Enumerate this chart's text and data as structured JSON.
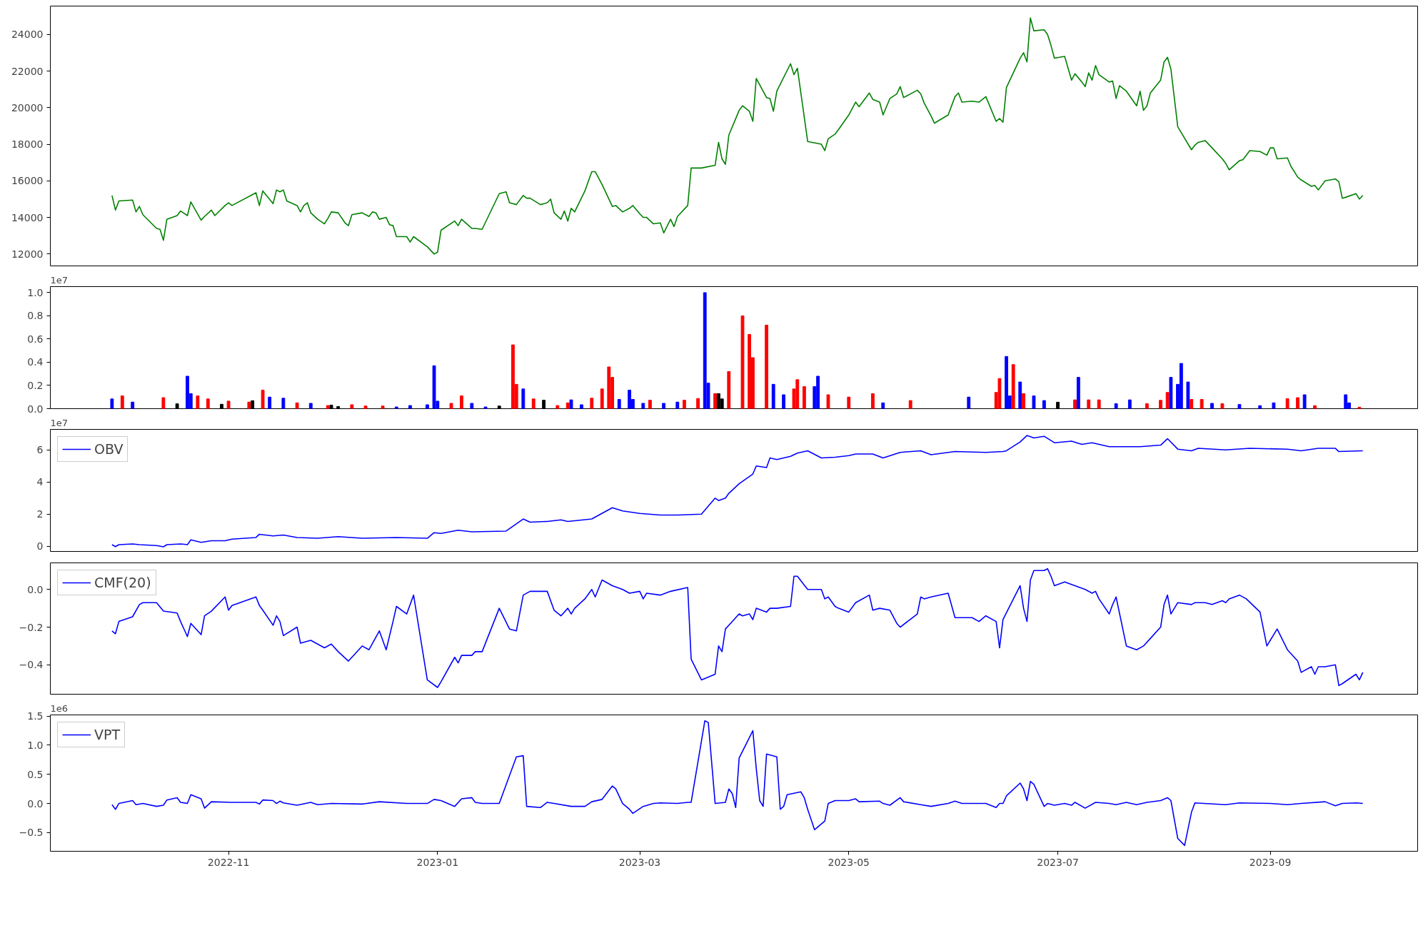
{
  "chart_data": [
    {
      "type": "line",
      "xlim": [
        "2022-09-10",
        "2023-10-14"
      ],
      "tick_labels": "y",
      "ylim": [
        11350,
        25550
      ],
      "yticks": [
        12000,
        14000,
        16000,
        18000,
        20000,
        22000,
        24000
      ],
      "series": [
        {
          "color": "#008000",
          "x": [
            "2022-09-28",
            "2022-09-29",
            "2022-09-30",
            "2022-10-04",
            "2022-10-05",
            "2022-10-06",
            "2022-10-07",
            "2022-10-11",
            "2022-10-12",
            "2022-10-13",
            "2022-10-14",
            "2022-10-17",
            "2022-10-18",
            "2022-10-20",
            "2022-10-21",
            "2022-10-24",
            "2022-10-25",
            "2022-10-27",
            "2022-10-28",
            "2022-10-31",
            "2022-11-01",
            "2022-11-02",
            "2022-11-09",
            "2022-11-10",
            "2022-11-11",
            "2022-11-14",
            "2022-11-15",
            "2022-11-16",
            "2022-11-17",
            "2022-11-18",
            "2022-11-21",
            "2022-11-22",
            "2022-11-23",
            "2022-11-24",
            "2022-11-25",
            "2022-11-27",
            "2022-11-29",
            "2022-11-30",
            "2022-12-01",
            "2022-12-03",
            "2022-12-05",
            "2022-12-06",
            "2022-12-07",
            "2022-12-10",
            "2022-12-12",
            "2022-12-13",
            "2022-12-14",
            "2022-12-15",
            "2022-12-17",
            "2022-12-18",
            "2022-12-19",
            "2022-12-20",
            "2022-12-23",
            "2022-12-24",
            "2022-12-25",
            "2022-12-29",
            "2022-12-31",
            "2023-01-01",
            "2023-01-02",
            "2023-01-06",
            "2023-01-07",
            "2023-01-08",
            "2023-01-11",
            "2023-01-12",
            "2023-01-14",
            "2023-01-19",
            "2023-01-21",
            "2023-01-22",
            "2023-01-24",
            "2023-01-26",
            "2023-01-27",
            "2023-01-28",
            "2023-01-31",
            "2023-02-02",
            "2023-02-03",
            "2023-02-04",
            "2023-02-06",
            "2023-02-07",
            "2023-02-08",
            "2023-02-09",
            "2023-02-10",
            "2023-02-13",
            "2023-02-15",
            "2023-02-16",
            "2023-02-18",
            "2023-02-21",
            "2023-02-22",
            "2023-02-24",
            "2023-02-26",
            "2023-02-27",
            "2023-03-01",
            "2023-03-02",
            "2023-03-03",
            "2023-03-05",
            "2023-03-07",
            "2023-03-08",
            "2023-03-10",
            "2023-03-11",
            "2023-03-12",
            "2023-03-15",
            "2023-03-16",
            "2023-03-19",
            "2023-03-23",
            "2023-03-24",
            "2023-03-25",
            "2023-03-26",
            "2023-03-27",
            "2023-03-30",
            "2023-03-31",
            "2023-04-02",
            "2023-04-03",
            "2023-04-04",
            "2023-04-07",
            "2023-04-08",
            "2023-04-09",
            "2023-04-10",
            "2023-04-14",
            "2023-04-15",
            "2023-04-16",
            "2023-04-19",
            "2023-04-23",
            "2023-04-24",
            "2023-04-25",
            "2023-04-27",
            "2023-04-28",
            "2023-05-01",
            "2023-05-03",
            "2023-05-04",
            "2023-05-07",
            "2023-05-08",
            "2023-05-10",
            "2023-05-11",
            "2023-05-13",
            "2023-05-15",
            "2023-05-16",
            "2023-05-17",
            "2023-05-21",
            "2023-05-22",
            "2023-05-23",
            "2023-05-25",
            "2023-05-26",
            "2023-05-30",
            "2023-06-01",
            "2023-06-02",
            "2023-06-03",
            "2023-06-06",
            "2023-06-08",
            "2023-06-10",
            "2023-06-13",
            "2023-06-14",
            "2023-06-15",
            "2023-06-16",
            "2023-06-20",
            "2023-06-21",
            "2023-06-22",
            "2023-06-23",
            "2023-06-24",
            "2023-06-27",
            "2023-06-28",
            "2023-06-29",
            "2023-06-30",
            "2023-07-03",
            "2023-07-05",
            "2023-07-06",
            "2023-07-08",
            "2023-07-09",
            "2023-07-10",
            "2023-07-11",
            "2023-07-12",
            "2023-07-13",
            "2023-07-16",
            "2023-07-17",
            "2023-07-18",
            "2023-07-19",
            "2023-07-21",
            "2023-07-24",
            "2023-07-25",
            "2023-07-26",
            "2023-07-27",
            "2023-07-28",
            "2023-07-31",
            "2023-08-01",
            "2023-08-02",
            "2023-08-03",
            "2023-08-05",
            "2023-08-09",
            "2023-08-10",
            "2023-08-11",
            "2023-08-13",
            "2023-08-15",
            "2023-08-18",
            "2023-08-19",
            "2023-08-20",
            "2023-08-23",
            "2023-08-24",
            "2023-08-25",
            "2023-08-26",
            "2023-08-29",
            "2023-08-31",
            "2023-09-01",
            "2023-09-02",
            "2023-09-03",
            "2023-09-06",
            "2023-09-07",
            "2023-09-09",
            "2023-09-10",
            "2023-09-13",
            "2023-09-14",
            "2023-09-15",
            "2023-09-17",
            "2023-09-20",
            "2023-09-21",
            "2023-09-22",
            "2023-09-23",
            "2023-09-26",
            "2023-09-27",
            "2023-09-28"
          ],
          "values": [
            15200,
            14400,
            14900,
            14950,
            14300,
            14600,
            14150,
            13400,
            13350,
            12750,
            13900,
            14100,
            14350,
            14100,
            14850,
            13850,
            14050,
            14400,
            14100,
            14650,
            14800,
            14650,
            15350,
            14650,
            15450,
            14750,
            15500,
            15400,
            15500,
            14900,
            14650,
            14300,
            14650,
            14800,
            14250,
            13900,
            13650,
            13950,
            14300,
            14250,
            13700,
            13550,
            14150,
            14250,
            14050,
            14300,
            14250,
            13900,
            14000,
            13600,
            13550,
            12950,
            12950,
            12650,
            12950,
            12400,
            12000,
            12100,
            13300,
            13800,
            13550,
            13900,
            13400,
            13400,
            13350,
            15300,
            15400,
            14800,
            14700,
            15200,
            15050,
            15050,
            14700,
            14800,
            15000,
            14250,
            13900,
            14350,
            13800,
            14500,
            14300,
            15450,
            16500,
            16500,
            15800,
            14600,
            14650,
            14300,
            14500,
            14650,
            14200,
            14000,
            14000,
            13650,
            13700,
            13150,
            13900,
            13500,
            14050,
            14650,
            16700,
            16700,
            16850,
            18100,
            17200,
            16900,
            18500,
            19850,
            20100,
            19800,
            19250,
            21600,
            20550,
            20500,
            19800,
            20900,
            22400,
            21800,
            22150,
            18150,
            18000,
            17650,
            18300,
            18550,
            18800,
            19600,
            20300,
            20050,
            20800,
            20450,
            20300,
            19600,
            20500,
            20750,
            21150,
            20550,
            20950,
            20750,
            20250,
            19550,
            19150,
            19600,
            20600,
            20800,
            20300,
            20350,
            20300,
            20600,
            19250,
            19400,
            19200,
            21100,
            22700,
            23000,
            22500,
            24900,
            24200,
            24250,
            24000,
            23400,
            22700,
            22800,
            21500,
            21850,
            21400,
            21150,
            21900,
            21500,
            22300,
            21800,
            21400,
            21450,
            20500,
            21200,
            20900,
            20100,
            20900,
            19850,
            20100,
            20800,
            21500,
            22500,
            22750,
            22100,
            18950,
            17700,
            17950,
            18100,
            18200,
            17800,
            17200,
            16950,
            16600,
            17100,
            17150,
            17400,
            17650,
            17600,
            17400,
            17800,
            17800,
            17200,
            17250,
            16800,
            16200,
            16050,
            15700,
            15750,
            15500,
            16000,
            16100,
            15950,
            15050,
            15100,
            15300,
            15000,
            15200
          ]
        }
      ]
    },
    {
      "type": "bar",
      "xlim": [
        "2022-09-10",
        "2023-10-14"
      ],
      "tick_labels": "y",
      "ylim": [
        0,
        1.052
      ],
      "annotations": [
        "1e7"
      ],
      "yticks": [
        {
          "value": 0,
          "label": "0.0"
        },
        0.2,
        0.4,
        0.6,
        0.8,
        {
          "value": 1,
          "label": "1.0"
        }
      ],
      "x": [
        "2022-09-28",
        "2022-10-01",
        "2022-10-04",
        "2022-10-13",
        "2022-10-17",
        "2022-10-20",
        "2022-10-21",
        "2022-10-23",
        "2022-10-26",
        "2022-10-30",
        "2022-11-01",
        "2022-11-07",
        "2022-11-08",
        "2022-11-11",
        "2022-11-13",
        "2022-11-17",
        "2022-11-21",
        "2022-11-25",
        "2022-11-30",
        "2022-12-01",
        "2022-12-03",
        "2022-12-07",
        "2022-12-11",
        "2022-12-16",
        "2022-12-20",
        "2022-12-24",
        "2022-12-29",
        "2022-12-31",
        "2023-01-01",
        "2023-01-05",
        "2023-01-08",
        "2023-01-11",
        "2023-01-15",
        "2023-01-19",
        "2023-01-23",
        "2023-01-24",
        "2023-01-26",
        "2023-01-29",
        "2023-02-01",
        "2023-02-05",
        "2023-02-08",
        "2023-02-09",
        "2023-02-12",
        "2023-02-15",
        "2023-02-18",
        "2023-02-20",
        "2023-02-21",
        "2023-02-23",
        "2023-02-26",
        "2023-02-27",
        "2023-03-02",
        "2023-03-04",
        "2023-03-08",
        "2023-03-12",
        "2023-03-14",
        "2023-03-18",
        "2023-03-20",
        "2023-03-21",
        "2023-03-23",
        "2023-03-24",
        "2023-03-25",
        "2023-03-27",
        "2023-03-31",
        "2023-04-02",
        "2023-04-03",
        "2023-04-07",
        "2023-04-09",
        "2023-04-12",
        "2023-04-15",
        "2023-04-16",
        "2023-04-18",
        "2023-04-21",
        "2023-04-22",
        "2023-04-25",
        "2023-05-01",
        "2023-05-08",
        "2023-05-11",
        "2023-05-19",
        "2023-06-05",
        "2023-06-13",
        "2023-06-14",
        "2023-06-16",
        "2023-06-17",
        "2023-06-18",
        "2023-06-20",
        "2023-06-21",
        "2023-06-24",
        "2023-06-27",
        "2023-07-01",
        "2023-07-06",
        "2023-07-07",
        "2023-07-10",
        "2023-07-13",
        "2023-07-18",
        "2023-07-22",
        "2023-07-27",
        "2023-07-31",
        "2023-08-02",
        "2023-08-03",
        "2023-08-05",
        "2023-08-06",
        "2023-08-08",
        "2023-08-09",
        "2023-08-12",
        "2023-08-15",
        "2023-08-18",
        "2023-08-23",
        "2023-08-29",
        "2023-09-02",
        "2023-09-06",
        "2023-09-09",
        "2023-09-11",
        "2023-09-14",
        "2023-09-23",
        "2023-09-24",
        "2023-09-27"
      ],
      "values": [
        0.084,
        0.11,
        0.057,
        0.095,
        0.042,
        0.28,
        0.13,
        0.11,
        0.084,
        0.038,
        0.065,
        0.057,
        0.069,
        0.16,
        0.1,
        0.09,
        0.05,
        0.046,
        0.027,
        0.031,
        0.019,
        0.034,
        0.023,
        0.023,
        0.015,
        0.027,
        0.034,
        0.37,
        0.065,
        0.046,
        0.11,
        0.046,
        0.015,
        0.023,
        0.55,
        0.21,
        0.17,
        0.084,
        0.073,
        0.027,
        0.05,
        0.076,
        0.034,
        0.09,
        0.17,
        0.36,
        0.27,
        0.08,
        0.16,
        0.08,
        0.046,
        0.073,
        0.046,
        0.057,
        0.073,
        0.088,
        1.0,
        0.22,
        0.13,
        0.13,
        0.084,
        0.32,
        0.8,
        0.64,
        0.44,
        0.72,
        0.21,
        0.12,
        0.17,
        0.25,
        0.19,
        0.19,
        0.28,
        0.12,
        0.1,
        0.13,
        0.05,
        0.07,
        0.1,
        0.14,
        0.26,
        0.45,
        0.11,
        0.38,
        0.23,
        0.13,
        0.11,
        0.07,
        0.056,
        0.076,
        0.27,
        0.076,
        0.076,
        0.043,
        0.076,
        0.043,
        0.072,
        0.14,
        0.27,
        0.21,
        0.39,
        0.23,
        0.08,
        0.08,
        0.046,
        0.043,
        0.036,
        0.026,
        0.05,
        0.086,
        0.095,
        0.12,
        0.026,
        0.12,
        0.05,
        0.013
      ],
      "colors": [
        "#0000ff",
        "#ff0000",
        "#0000ff",
        "#ff0000",
        "#000000",
        "#0000ff",
        "#0000ff",
        "#ff0000",
        "#ff0000",
        "#000000",
        "#ff0000",
        "#ff0000",
        "#000000",
        "#ff0000",
        "#0000ff",
        "#0000ff",
        "#ff0000",
        "#0000ff",
        "#ff0000",
        "#000000",
        "#000000",
        "#ff0000",
        "#ff0000",
        "#ff0000",
        "#0000ff",
        "#0000ff",
        "#0000ff",
        "#0000ff",
        "#0000ff",
        "#ff0000",
        "#ff0000",
        "#0000ff",
        "#0000ff",
        "#000000",
        "#ff0000",
        "#ff0000",
        "#0000ff",
        "#ff0000",
        "#000000",
        "#ff0000",
        "#ff0000",
        "#0000ff",
        "#0000ff",
        "#ff0000",
        "#ff0000",
        "#ff0000",
        "#ff0000",
        "#0000ff",
        "#0000ff",
        "#0000ff",
        "#0000ff",
        "#ff0000",
        "#0000ff",
        "#0000ff",
        "#ff0000",
        "#ff0000",
        "#0000ff",
        "#0000ff",
        "#ff0000",
        "#000000",
        "#000000",
        "#ff0000",
        "#ff0000",
        "#ff0000",
        "#ff0000",
        "#ff0000",
        "#0000ff",
        "#0000ff",
        "#ff0000",
        "#ff0000",
        "#ff0000",
        "#0000ff",
        "#0000ff",
        "#ff0000",
        "#ff0000",
        "#ff0000",
        "#0000ff",
        "#ff0000",
        "#0000ff",
        "#ff0000",
        "#ff0000",
        "#0000ff",
        "#0000ff",
        "#ff0000",
        "#0000ff",
        "#ff0000",
        "#0000ff",
        "#0000ff",
        "#000000",
        "#ff0000",
        "#0000ff",
        "#ff0000",
        "#ff0000",
        "#0000ff",
        "#0000ff",
        "#ff0000",
        "#ff0000",
        "#ff0000",
        "#0000ff",
        "#0000ff",
        "#0000ff",
        "#0000ff",
        "#ff0000",
        "#ff0000",
        "#0000ff",
        "#ff0000",
        "#0000ff",
        "#0000ff",
        "#0000ff",
        "#ff0000",
        "#ff0000",
        "#0000ff",
        "#ff0000",
        "#0000ff",
        "#0000ff",
        "#ff0000"
      ]
    },
    {
      "type": "line",
      "xlim": [
        "2022-09-10",
        "2023-10-14"
      ],
      "tick_labels": "y",
      "ylim": [
        -0.32,
        7.28
      ],
      "annotations": [
        "1e7"
      ],
      "legend": "top left",
      "yticks": [
        0,
        2,
        4,
        6
      ],
      "series": [
        {
          "name": "OBV",
          "color": "#0000ff",
          "x": [
            "2022-09-28",
            "2022-09-29",
            "2022-09-30",
            "2022-10-04",
            "2022-10-06",
            "2022-10-11",
            "2022-10-13",
            "2022-10-14",
            "2022-10-18",
            "2022-10-20",
            "2022-10-21",
            "2022-10-24",
            "2022-10-27",
            "2022-10-31",
            "2022-11-02",
            "2022-11-09",
            "2022-11-10",
            "2022-11-14",
            "2022-11-17",
            "2022-11-21",
            "2022-11-27",
            "2022-12-03",
            "2022-12-10",
            "2022-12-20",
            "2022-12-29",
            "2022-12-31",
            "2023-01-02",
            "2023-01-07",
            "2023-01-11",
            "2023-01-21",
            "2023-01-26",
            "2023-01-28",
            "2023-02-02",
            "2023-02-06",
            "2023-02-08",
            "2023-02-15",
            "2023-02-21",
            "2023-02-24",
            "2023-03-01",
            "2023-03-07",
            "2023-03-12",
            "2023-03-19",
            "2023-03-23",
            "2023-03-24",
            "2023-03-26",
            "2023-03-27",
            "2023-03-30",
            "2023-04-03",
            "2023-04-04",
            "2023-04-07",
            "2023-04-08",
            "2023-04-10",
            "2023-04-14",
            "2023-04-16",
            "2023-04-19",
            "2023-04-23",
            "2023-04-27",
            "2023-05-01",
            "2023-05-03",
            "2023-05-08",
            "2023-05-11",
            "2023-05-16",
            "2023-05-22",
            "2023-05-25",
            "2023-06-01",
            "2023-06-10",
            "2023-06-15",
            "2023-06-16",
            "2023-06-20",
            "2023-06-22",
            "2023-06-24",
            "2023-06-27",
            "2023-06-30",
            "2023-07-05",
            "2023-07-08",
            "2023-07-11",
            "2023-07-16",
            "2023-07-25",
            "2023-07-31",
            "2023-08-02",
            "2023-08-05",
            "2023-08-09",
            "2023-08-11",
            "2023-08-19",
            "2023-08-26",
            "2023-09-06",
            "2023-09-10",
            "2023-09-15",
            "2023-09-20",
            "2023-09-21",
            "2023-09-28"
          ],
          "values": [
            0.1,
            -0.02,
            0.1,
            0.15,
            0.1,
            0.05,
            -0.03,
            0.1,
            0.15,
            0.1,
            0.4,
            0.25,
            0.35,
            0.35,
            0.45,
            0.55,
            0.75,
            0.65,
            0.7,
            0.55,
            0.5,
            0.6,
            0.5,
            0.55,
            0.5,
            0.85,
            0.8,
            1.0,
            0.9,
            0.95,
            1.7,
            1.5,
            1.55,
            1.65,
            1.55,
            1.7,
            2.4,
            2.2,
            2.05,
            1.95,
            1.95,
            2.0,
            3.0,
            2.85,
            3.0,
            3.3,
            3.9,
            4.5,
            5.0,
            4.9,
            5.5,
            5.4,
            5.6,
            5.8,
            5.95,
            5.5,
            5.55,
            5.65,
            5.75,
            5.75,
            5.5,
            5.85,
            5.95,
            5.7,
            5.9,
            5.85,
            5.9,
            5.95,
            6.5,
            6.9,
            6.75,
            6.85,
            6.45,
            6.55,
            6.35,
            6.45,
            6.2,
            6.2,
            6.3,
            6.7,
            6.05,
            5.95,
            6.1,
            6.0,
            6.1,
            6.05,
            5.95,
            6.1,
            6.1,
            5.9,
            5.95
          ]
        }
      ]
    },
    {
      "type": "line",
      "xlim": [
        "2022-09-10",
        "2023-10-14"
      ],
      "tick_labels": "y",
      "ylim": [
        -0.556,
        0.141
      ],
      "legend": "top left",
      "yticks": [
        {
          "value": -0.4,
          "label": "−0.4"
        },
        {
          "value": -0.2,
          "label": "−0.2"
        },
        {
          "value": 0,
          "label": "0.0"
        }
      ],
      "series": [
        {
          "name": "CMF(20)",
          "color": "#0000ff",
          "x": [
            "2022-09-28",
            "2022-09-29",
            "2022-09-30",
            "2022-10-04",
            "2022-10-06",
            "2022-10-07",
            "2022-10-11",
            "2022-10-13",
            "2022-10-17",
            "2022-10-18",
            "2022-10-20",
            "2022-10-21",
            "2022-10-24",
            "2022-10-25",
            "2022-10-27",
            "2022-10-31",
            "2022-11-01",
            "2022-11-02",
            "2022-11-09",
            "2022-11-10",
            "2022-11-11",
            "2022-11-14",
            "2022-11-15",
            "2022-11-16",
            "2022-11-17",
            "2022-11-21",
            "2022-11-22",
            "2022-11-25",
            "2022-11-29",
            "2022-12-01",
            "2022-12-03",
            "2022-12-06",
            "2022-12-07",
            "2022-12-10",
            "2022-12-12",
            "2022-12-15",
            "2022-12-17",
            "2022-12-19",
            "2022-12-20",
            "2022-12-23",
            "2022-12-25",
            "2022-12-29",
            "2023-01-01",
            "2023-01-02",
            "2023-01-06",
            "2023-01-07",
            "2023-01-08",
            "2023-01-11",
            "2023-01-12",
            "2023-01-14",
            "2023-01-19",
            "2023-01-22",
            "2023-01-24",
            "2023-01-26",
            "2023-01-28",
            "2023-02-02",
            "2023-02-04",
            "2023-02-06",
            "2023-02-08",
            "2023-02-09",
            "2023-02-10",
            "2023-02-13",
            "2023-02-15",
            "2023-02-16",
            "2023-02-18",
            "2023-02-21",
            "2023-02-24",
            "2023-02-26",
            "2023-03-01",
            "2023-03-02",
            "2023-03-03",
            "2023-03-07",
            "2023-03-10",
            "2023-03-15",
            "2023-03-16",
            "2023-03-19",
            "2023-03-23",
            "2023-03-24",
            "2023-03-25",
            "2023-03-26",
            "2023-03-30",
            "2023-03-31",
            "2023-04-02",
            "2023-04-03",
            "2023-04-04",
            "2023-04-07",
            "2023-04-08",
            "2023-04-10",
            "2023-04-14",
            "2023-04-15",
            "2023-04-16",
            "2023-04-19",
            "2023-04-23",
            "2023-04-24",
            "2023-04-25",
            "2023-04-27",
            "2023-04-28",
            "2023-05-01",
            "2023-05-03",
            "2023-05-07",
            "2023-05-08",
            "2023-05-10",
            "2023-05-13",
            "2023-05-15",
            "2023-05-16",
            "2023-05-21",
            "2023-05-22",
            "2023-05-23",
            "2023-05-25",
            "2023-05-30",
            "2023-06-01",
            "2023-06-06",
            "2023-06-08",
            "2023-06-10",
            "2023-06-13",
            "2023-06-14",
            "2023-06-15",
            "2023-06-20",
            "2023-06-21",
            "2023-06-22",
            "2023-06-23",
            "2023-06-24",
            "2023-06-27",
            "2023-06-28",
            "2023-06-29",
            "2023-06-30",
            "2023-07-03",
            "2023-07-06",
            "2023-07-09",
            "2023-07-11",
            "2023-07-12",
            "2023-07-13",
            "2023-07-16",
            "2023-07-17",
            "2023-07-18",
            "2023-07-21",
            "2023-07-24",
            "2023-07-26",
            "2023-07-28",
            "2023-07-31",
            "2023-08-01",
            "2023-08-02",
            "2023-08-03",
            "2023-08-05",
            "2023-08-09",
            "2023-08-10",
            "2023-08-13",
            "2023-08-15",
            "2023-08-18",
            "2023-08-19",
            "2023-08-20",
            "2023-08-23",
            "2023-08-25",
            "2023-08-29",
            "2023-08-31",
            "2023-09-03",
            "2023-09-06",
            "2023-09-09",
            "2023-09-10",
            "2023-09-13",
            "2023-09-14",
            "2023-09-15",
            "2023-09-17",
            "2023-09-20",
            "2023-09-21",
            "2023-09-22",
            "2023-09-26",
            "2023-09-27",
            "2023-09-28"
          ],
          "values": [
            -0.22,
            -0.235,
            -0.17,
            -0.145,
            -0.08,
            -0.07,
            -0.07,
            -0.115,
            -0.125,
            -0.17,
            -0.25,
            -0.18,
            -0.24,
            -0.14,
            -0.115,
            -0.04,
            -0.11,
            -0.085,
            -0.04,
            -0.085,
            -0.11,
            -0.19,
            -0.14,
            -0.17,
            -0.245,
            -0.2,
            -0.285,
            -0.27,
            -0.31,
            -0.29,
            -0.33,
            -0.38,
            -0.36,
            -0.3,
            -0.32,
            -0.22,
            -0.32,
            -0.17,
            -0.09,
            -0.13,
            -0.03,
            -0.48,
            -0.52,
            -0.49,
            -0.36,
            -0.39,
            -0.35,
            -0.35,
            -0.33,
            -0.33,
            -0.1,
            -0.21,
            -0.22,
            -0.03,
            -0.01,
            -0.01,
            -0.11,
            -0.14,
            -0.1,
            -0.13,
            -0.1,
            -0.05,
            0.0,
            -0.04,
            0.05,
            0.02,
            0.0,
            -0.02,
            -0.01,
            -0.05,
            -0.02,
            -0.03,
            -0.01,
            0.01,
            -0.37,
            -0.48,
            -0.45,
            -0.3,
            -0.33,
            -0.21,
            -0.13,
            -0.14,
            -0.13,
            -0.16,
            -0.1,
            -0.12,
            -0.1,
            -0.1,
            -0.09,
            0.07,
            0.07,
            0.0,
            0.0,
            -0.05,
            -0.04,
            -0.09,
            -0.1,
            -0.12,
            -0.07,
            -0.03,
            -0.11,
            -0.1,
            -0.11,
            -0.18,
            -0.2,
            -0.13,
            -0.04,
            -0.05,
            -0.04,
            -0.02,
            -0.15,
            -0.15,
            -0.17,
            -0.14,
            -0.17,
            -0.31,
            -0.16,
            0.02,
            -0.1,
            -0.17,
            0.05,
            0.1,
            0.1,
            0.11,
            0.07,
            0.02,
            0.04,
            0.02,
            0.0,
            -0.02,
            -0.01,
            -0.05,
            -0.13,
            -0.08,
            -0.04,
            -0.3,
            -0.32,
            -0.3,
            -0.26,
            -0.2,
            -0.08,
            -0.03,
            -0.13,
            -0.07,
            -0.08,
            -0.07,
            -0.07,
            -0.08,
            -0.06,
            -0.07,
            -0.05,
            -0.03,
            -0.05,
            -0.12,
            -0.3,
            -0.21,
            -0.32,
            -0.38,
            -0.44,
            -0.41,
            -0.45,
            -0.41,
            -0.41,
            -0.4,
            -0.51,
            -0.5,
            -0.45,
            -0.48,
            -0.44
          ]
        }
      ]
    },
    {
      "type": "line",
      "xlim": [
        "2022-09-10",
        "2023-10-14"
      ],
      "ylim": [
        -0.82,
        1.52
      ],
      "annotations": [
        "1e6"
      ],
      "legend": "top left",
      "xticks": [
        {
          "value": "2022-11-01",
          "label": "2022-11"
        },
        {
          "value": "2023-01-01",
          "label": "2023-01"
        },
        {
          "value": "2023-03-01",
          "label": "2023-03"
        },
        {
          "value": "2023-05-01",
          "label": "2023-05"
        },
        {
          "value": "2023-07-01",
          "label": "2023-07"
        },
        {
          "value": "2023-09-01",
          "label": "2023-09"
        }
      ],
      "yticks": [
        {
          "value": -0.5,
          "label": "−0.5"
        },
        {
          "value": 0,
          "label": "0.0"
        },
        0.5,
        {
          "value": 1,
          "label": "1.0"
        },
        1.5
      ],
      "series": [
        {
          "name": "VPT",
          "color": "#0000ff",
          "x": [
            "2022-09-28",
            "2022-09-29",
            "2022-09-30",
            "2022-10-04",
            "2022-10-05",
            "2022-10-07",
            "2022-10-11",
            "2022-10-13",
            "2022-10-14",
            "2022-10-17",
            "2022-10-18",
            "2022-10-20",
            "2022-10-21",
            "2022-10-24",
            "2022-10-25",
            "2022-10-27",
            "2022-11-02",
            "2022-11-09",
            "2022-11-10",
            "2022-11-11",
            "2022-11-14",
            "2022-11-15",
            "2022-11-16",
            "2022-11-17",
            "2022-11-21",
            "2022-11-25",
            "2022-11-27",
            "2022-12-01",
            "2022-12-10",
            "2022-12-15",
            "2022-12-23",
            "2022-12-29",
            "2022-12-31",
            "2023-01-02",
            "2023-01-06",
            "2023-01-08",
            "2023-01-11",
            "2023-01-12",
            "2023-01-14",
            "2023-01-19",
            "2023-01-24",
            "2023-01-26",
            "2023-01-27",
            "2023-01-31",
            "2023-02-02",
            "2023-02-04",
            "2023-02-09",
            "2023-02-13",
            "2023-02-15",
            "2023-02-18",
            "2023-02-21",
            "2023-02-22",
            "2023-02-24",
            "2023-02-26",
            "2023-02-27",
            "2023-03-02",
            "2023-03-05",
            "2023-03-07",
            "2023-03-12",
            "2023-03-15",
            "2023-03-16",
            "2023-03-20",
            "2023-03-21",
            "2023-03-23",
            "2023-03-26",
            "2023-03-27",
            "2023-03-28",
            "2023-03-29",
            "2023-03-30",
            "2023-04-03",
            "2023-04-04",
            "2023-04-05",
            "2023-04-06",
            "2023-04-07",
            "2023-04-10",
            "2023-04-11",
            "2023-04-12",
            "2023-04-13",
            "2023-04-17",
            "2023-04-18",
            "2023-04-19",
            "2023-04-21",
            "2023-04-24",
            "2023-04-25",
            "2023-04-27",
            "2023-05-01",
            "2023-05-03",
            "2023-05-04",
            "2023-05-10",
            "2023-05-11",
            "2023-05-13",
            "2023-05-16",
            "2023-05-17",
            "2023-05-22",
            "2023-05-25",
            "2023-05-30",
            "2023-06-01",
            "2023-06-03",
            "2023-06-10",
            "2023-06-13",
            "2023-06-14",
            "2023-06-15",
            "2023-06-16",
            "2023-06-20",
            "2023-06-21",
            "2023-06-22",
            "2023-06-23",
            "2023-06-24",
            "2023-06-27",
            "2023-06-28",
            "2023-06-30",
            "2023-07-03",
            "2023-07-05",
            "2023-07-06",
            "2023-07-09",
            "2023-07-12",
            "2023-07-16",
            "2023-07-18",
            "2023-07-21",
            "2023-07-24",
            "2023-07-27",
            "2023-07-31",
            "2023-08-02",
            "2023-08-03",
            "2023-08-05",
            "2023-08-07",
            "2023-08-09",
            "2023-08-10",
            "2023-08-19",
            "2023-08-23",
            "2023-09-01",
            "2023-09-06",
            "2023-09-10",
            "2023-09-17",
            "2023-09-20",
            "2023-09-22",
            "2023-09-26",
            "2023-09-28"
          ],
          "values": [
            -0.02,
            -0.1,
            0,
            0.05,
            -0.02,
            0,
            -0.05,
            -0.03,
            0.06,
            0.1,
            0.02,
            0,
            0.15,
            0.08,
            -0.08,
            0.03,
            0.02,
            0.02,
            -0.01,
            0.06,
            0.05,
            0,
            0.04,
            0.01,
            -0.03,
            0.02,
            -0.02,
            0,
            -0.01,
            0.03,
            0,
            0,
            0.07,
            0.05,
            -0.05,
            0.08,
            0.1,
            0.02,
            0,
            0,
            0.8,
            0.82,
            -0.05,
            -0.07,
            0.02,
            0,
            -0.05,
            -0.05,
            0.03,
            0.07,
            0.3,
            0.25,
            0,
            -0.1,
            -0.17,
            -0.05,
            0,
            0.01,
            0,
            0.02,
            0.02,
            1.42,
            1.39,
            0,
            0.02,
            0.25,
            0.17,
            -0.07,
            0.78,
            1.25,
            0.6,
            0.05,
            -0.05,
            0.85,
            0.8,
            -0.1,
            -0.05,
            0.15,
            0.2,
            0.1,
            -0.1,
            -0.45,
            -0.3,
            0,
            0.05,
            0.05,
            0.08,
            0.03,
            0.04,
            0,
            -0.03,
            0.1,
            0.03,
            -0.02,
            -0.05,
            0,
            0.04,
            0,
            0,
            -0.07,
            0,
            0,
            0.13,
            0.35,
            0.25,
            0.05,
            0.38,
            0.33,
            -0.05,
            0,
            -0.03,
            0,
            -0.03,
            0.02,
            -0.08,
            0.02,
            0,
            -0.02,
            0.02,
            -0.02,
            0.02,
            0.05,
            0.1,
            0.05,
            -0.6,
            -0.72,
            -0.15,
            0.01,
            -0.02,
            0.01,
            0,
            -0.02,
            0,
            0.03,
            -0.04,
            0,
            0.01,
            0
          ]
        }
      ]
    }
  ]
}
